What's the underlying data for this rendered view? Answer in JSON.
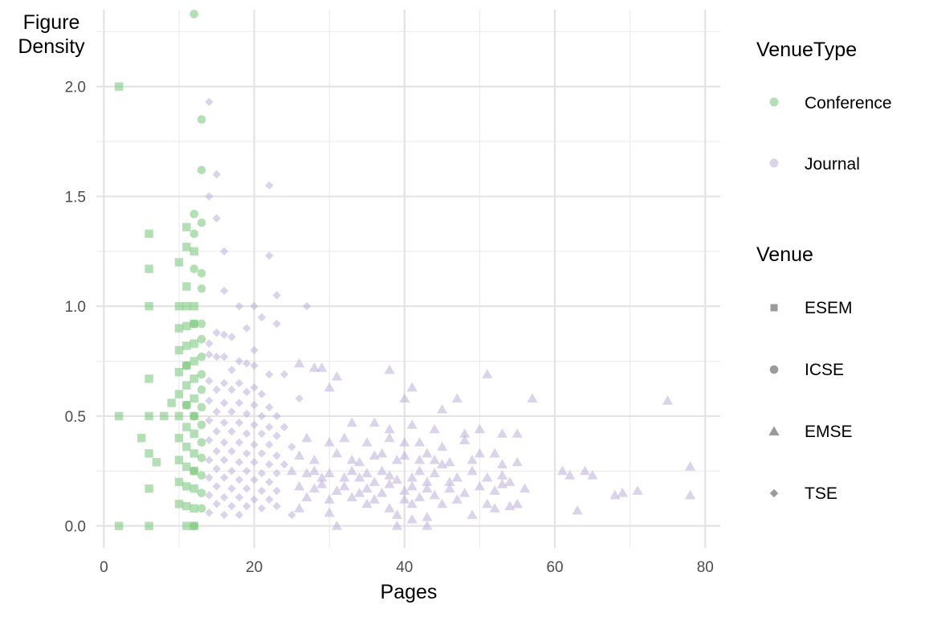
{
  "chart_data": {
    "type": "scatter",
    "xlabel": "Pages",
    "ylabel_lines": [
      "Figure",
      "Density"
    ],
    "xlim": [
      -1,
      82
    ],
    "ylim": [
      -0.1,
      2.35
    ],
    "x_ticks": [
      0,
      20,
      40,
      60,
      80
    ],
    "y_ticks": [
      0.0,
      0.5,
      1.0,
      1.5,
      2.0
    ],
    "x_tick_labels": [
      "0",
      "20",
      "40",
      "60",
      "80"
    ],
    "y_tick_labels": [
      "0.0",
      "0.5",
      "1.0",
      "1.5",
      "2.0"
    ],
    "grid": true,
    "legend_position": "right",
    "colors": {
      "Conference": "#74c476",
      "Journal": "#bcaed8",
      "legend_shape": "#9a9a9a"
    },
    "color_legend": {
      "title": "VenueType",
      "entries": [
        "Conference",
        "Journal"
      ]
    },
    "shape_legend": {
      "title": "Venue",
      "entries": [
        "ESEM",
        "ICSE",
        "EMSE",
        "TSE"
      ]
    },
    "series": [
      {
        "venue": "ESEM",
        "venue_type": "Conference",
        "shape": "square",
        "points": [
          [
            2,
            2.0
          ],
          [
            2,
            0.5
          ],
          [
            2,
            0.0
          ],
          [
            5,
            0.4
          ],
          [
            6,
            1.33
          ],
          [
            6,
            1.17
          ],
          [
            6,
            1.0
          ],
          [
            6,
            0.67
          ],
          [
            6,
            0.5
          ],
          [
            6,
            0.33
          ],
          [
            6,
            0.17
          ],
          [
            6,
            0.0
          ],
          [
            7,
            0.29
          ],
          [
            8,
            0.5
          ],
          [
            9,
            0.56
          ],
          [
            10,
            1.2
          ],
          [
            10,
            1.0
          ],
          [
            10,
            0.9
          ],
          [
            10,
            0.8
          ],
          [
            10,
            0.7
          ],
          [
            10,
            0.6
          ],
          [
            10,
            0.5
          ],
          [
            10,
            0.4
          ],
          [
            10,
            0.3
          ],
          [
            10,
            0.2
          ],
          [
            10,
            0.1
          ],
          [
            11,
            1.36
          ],
          [
            11,
            1.27
          ],
          [
            11,
            1.09
          ],
          [
            11,
            1.0
          ],
          [
            11,
            0.91
          ],
          [
            11,
            0.82
          ],
          [
            11,
            0.73
          ],
          [
            11,
            0.64
          ],
          [
            11,
            0.55
          ],
          [
            11,
            0.45
          ],
          [
            11,
            0.36
          ],
          [
            11,
            0.27
          ],
          [
            11,
            0.18
          ],
          [
            11,
            0.09
          ],
          [
            11,
            0.0
          ],
          [
            12,
            1.25
          ],
          [
            12,
            1.0
          ],
          [
            12,
            0.92
          ],
          [
            12,
            0.83
          ],
          [
            12,
            0.75
          ],
          [
            12,
            0.67
          ],
          [
            12,
            0.58
          ],
          [
            12,
            0.5
          ],
          [
            12,
            0.42
          ],
          [
            12,
            0.33
          ],
          [
            12,
            0.25
          ],
          [
            12,
            0.17
          ],
          [
            12,
            0.08
          ],
          [
            12,
            0.0
          ]
        ]
      },
      {
        "venue": "ICSE",
        "venue_type": "Conference",
        "shape": "circle",
        "points": [
          [
            12,
            2.33
          ],
          [
            13,
            1.85
          ],
          [
            13,
            1.62
          ],
          [
            12,
            1.42
          ],
          [
            13,
            1.38
          ],
          [
            12,
            1.33
          ],
          [
            13,
            1.15
          ],
          [
            13,
            1.08
          ],
          [
            12,
            1.17
          ],
          [
            12,
            0.92
          ],
          [
            13,
            0.92
          ],
          [
            13,
            0.85
          ],
          [
            13,
            0.77
          ],
          [
            13,
            0.69
          ],
          [
            13,
            0.62
          ],
          [
            13,
            0.54
          ],
          [
            13,
            0.46
          ],
          [
            13,
            0.38
          ],
          [
            13,
            0.31
          ],
          [
            13,
            0.23
          ],
          [
            13,
            0.15
          ],
          [
            13,
            0.08
          ],
          [
            12,
            0.0
          ],
          [
            12,
            0.5
          ],
          [
            12,
            0.25
          ],
          [
            11,
            0.73
          ],
          [
            11,
            0.55
          ]
        ]
      },
      {
        "venue": "EMSE",
        "venue_type": "Journal",
        "shape": "triangle",
        "points": [
          [
            26,
            0.74
          ],
          [
            28,
            0.72
          ],
          [
            29,
            0.72
          ],
          [
            31,
            0.68
          ],
          [
            38,
            0.71
          ],
          [
            41,
            0.63
          ],
          [
            51,
            0.69
          ],
          [
            57,
            0.58
          ],
          [
            75,
            0.57
          ],
          [
            30,
            0.63
          ],
          [
            40,
            0.58
          ],
          [
            45,
            0.53
          ],
          [
            47,
            0.58
          ],
          [
            33,
            0.47
          ],
          [
            36,
            0.47
          ],
          [
            38,
            0.44
          ],
          [
            41,
            0.46
          ],
          [
            44,
            0.44
          ],
          [
            48,
            0.42
          ],
          [
            50,
            0.44
          ],
          [
            53,
            0.42
          ],
          [
            55,
            0.42
          ],
          [
            27,
            0.4
          ],
          [
            30,
            0.38
          ],
          [
            32,
            0.4
          ],
          [
            35,
            0.38
          ],
          [
            38,
            0.4
          ],
          [
            40,
            0.38
          ],
          [
            42,
            0.38
          ],
          [
            45,
            0.36
          ],
          [
            48,
            0.39
          ],
          [
            52,
            0.33
          ],
          [
            26,
            0.32
          ],
          [
            28,
            0.3
          ],
          [
            31,
            0.33
          ],
          [
            33,
            0.3
          ],
          [
            34,
            0.29
          ],
          [
            36,
            0.32
          ],
          [
            37,
            0.33
          ],
          [
            39,
            0.3
          ],
          [
            40,
            0.32
          ],
          [
            42,
            0.3
          ],
          [
            43,
            0.33
          ],
          [
            44,
            0.3
          ],
          [
            45,
            0.28
          ],
          [
            46,
            0.29
          ],
          [
            49,
            0.3
          ],
          [
            50,
            0.33
          ],
          [
            53,
            0.28
          ],
          [
            55,
            0.29
          ],
          [
            25,
            0.25
          ],
          [
            27,
            0.24
          ],
          [
            28,
            0.25
          ],
          [
            29,
            0.22
          ],
          [
            30,
            0.24
          ],
          [
            32,
            0.22
          ],
          [
            33,
            0.25
          ],
          [
            34,
            0.22
          ],
          [
            35,
            0.24
          ],
          [
            36,
            0.2
          ],
          [
            37,
            0.25
          ],
          [
            38,
            0.23
          ],
          [
            39,
            0.21
          ],
          [
            41,
            0.22
          ],
          [
            42,
            0.25
          ],
          [
            43,
            0.2
          ],
          [
            44,
            0.24
          ],
          [
            46,
            0.2
          ],
          [
            47,
            0.22
          ],
          [
            49,
            0.25
          ],
          [
            51,
            0.22
          ],
          [
            53,
            0.23
          ],
          [
            54,
            0.2
          ],
          [
            61,
            0.25
          ],
          [
            62,
            0.23
          ],
          [
            64,
            0.25
          ],
          [
            65,
            0.23
          ],
          [
            78,
            0.27
          ],
          [
            26,
            0.18
          ],
          [
            28,
            0.17
          ],
          [
            29,
            0.19
          ],
          [
            31,
            0.16
          ],
          [
            32,
            0.18
          ],
          [
            34,
            0.15
          ],
          [
            35,
            0.17
          ],
          [
            37,
            0.15
          ],
          [
            38,
            0.19
          ],
          [
            40,
            0.16
          ],
          [
            41,
            0.18
          ],
          [
            43,
            0.17
          ],
          [
            44,
            0.14
          ],
          [
            46,
            0.17
          ],
          [
            48,
            0.15
          ],
          [
            50,
            0.18
          ],
          [
            52,
            0.16
          ],
          [
            53,
            0.19
          ],
          [
            56,
            0.17
          ],
          [
            68,
            0.14
          ],
          [
            69,
            0.15
          ],
          [
            71,
            0.16
          ],
          [
            78,
            0.14
          ],
          [
            27,
            0.13
          ],
          [
            30,
            0.12
          ],
          [
            33,
            0.13
          ],
          [
            35,
            0.1
          ],
          [
            36,
            0.12
          ],
          [
            38,
            0.08
          ],
          [
            40,
            0.12
          ],
          [
            41,
            0.1
          ],
          [
            42,
            0.13
          ],
          [
            45,
            0.1
          ],
          [
            47,
            0.12
          ],
          [
            51,
            0.1
          ],
          [
            54,
            0.09
          ],
          [
            55,
            0.1
          ],
          [
            63,
            0.07
          ],
          [
            26,
            0.08
          ],
          [
            30,
            0.06
          ],
          [
            39,
            0.05
          ],
          [
            41,
            0.03
          ],
          [
            43,
            0.04
          ],
          [
            49,
            0.05
          ],
          [
            52,
            0.08
          ],
          [
            31,
            0.0
          ],
          [
            39,
            0.0
          ],
          [
            43,
            0.0
          ]
        ]
      },
      {
        "venue": "TSE",
        "venue_type": "Journal",
        "shape": "diamond",
        "points": [
          [
            14,
            1.93
          ],
          [
            15,
            1.6
          ],
          [
            22,
            1.55
          ],
          [
            14,
            1.5
          ],
          [
            15,
            1.4
          ],
          [
            16,
            1.25
          ],
          [
            22,
            1.23
          ],
          [
            16,
            1.07
          ],
          [
            23,
            1.05
          ],
          [
            18,
            1.0
          ],
          [
            20,
            1.0
          ],
          [
            27,
            1.0
          ],
          [
            21,
            0.95
          ],
          [
            23,
            0.92
          ],
          [
            19,
            0.9
          ],
          [
            15,
            0.88
          ],
          [
            16,
            0.87
          ],
          [
            17,
            0.86
          ],
          [
            14,
            0.83
          ],
          [
            20,
            0.8
          ],
          [
            14,
            0.78
          ],
          [
            15,
            0.77
          ],
          [
            16,
            0.77
          ],
          [
            18,
            0.75
          ],
          [
            19,
            0.74
          ],
          [
            20,
            0.73
          ],
          [
            17,
            0.71
          ],
          [
            22,
            0.69
          ],
          [
            24,
            0.69
          ],
          [
            14,
            0.66
          ],
          [
            16,
            0.65
          ],
          [
            18,
            0.65
          ],
          [
            20,
            0.63
          ],
          [
            15,
            0.62
          ],
          [
            17,
            0.62
          ],
          [
            19,
            0.61
          ],
          [
            21,
            0.6
          ],
          [
            26,
            0.58
          ],
          [
            14,
            0.57
          ],
          [
            16,
            0.56
          ],
          [
            18,
            0.56
          ],
          [
            20,
            0.55
          ],
          [
            22,
            0.54
          ],
          [
            15,
            0.52
          ],
          [
            17,
            0.52
          ],
          [
            19,
            0.51
          ],
          [
            21,
            0.5
          ],
          [
            23,
            0.5
          ],
          [
            14,
            0.48
          ],
          [
            16,
            0.47
          ],
          [
            18,
            0.47
          ],
          [
            20,
            0.46
          ],
          [
            22,
            0.45
          ],
          [
            24,
            0.45
          ],
          [
            15,
            0.43
          ],
          [
            17,
            0.43
          ],
          [
            19,
            0.42
          ],
          [
            21,
            0.42
          ],
          [
            23,
            0.41
          ],
          [
            14,
            0.39
          ],
          [
            16,
            0.38
          ],
          [
            18,
            0.38
          ],
          [
            20,
            0.37
          ],
          [
            22,
            0.37
          ],
          [
            25,
            0.36
          ],
          [
            15,
            0.34
          ],
          [
            17,
            0.34
          ],
          [
            19,
            0.33
          ],
          [
            21,
            0.33
          ],
          [
            23,
            0.32
          ],
          [
            14,
            0.3
          ],
          [
            16,
            0.3
          ],
          [
            18,
            0.29
          ],
          [
            20,
            0.29
          ],
          [
            22,
            0.28
          ],
          [
            24,
            0.28
          ],
          [
            15,
            0.26
          ],
          [
            17,
            0.25
          ],
          [
            19,
            0.25
          ],
          [
            21,
            0.24
          ],
          [
            23,
            0.24
          ],
          [
            14,
            0.22
          ],
          [
            16,
            0.22
          ],
          [
            18,
            0.21
          ],
          [
            20,
            0.21
          ],
          [
            22,
            0.2
          ],
          [
            15,
            0.18
          ],
          [
            17,
            0.17
          ],
          [
            19,
            0.17
          ],
          [
            21,
            0.16
          ],
          [
            23,
            0.16
          ],
          [
            14,
            0.14
          ],
          [
            16,
            0.13
          ],
          [
            18,
            0.13
          ],
          [
            20,
            0.12
          ],
          [
            22,
            0.12
          ],
          [
            15,
            0.1
          ],
          [
            17,
            0.09
          ],
          [
            19,
            0.09
          ],
          [
            21,
            0.08
          ],
          [
            23,
            0.09
          ],
          [
            14,
            0.06
          ],
          [
            16,
            0.05
          ],
          [
            18,
            0.05
          ],
          [
            25,
            0.05
          ]
        ]
      }
    ]
  }
}
